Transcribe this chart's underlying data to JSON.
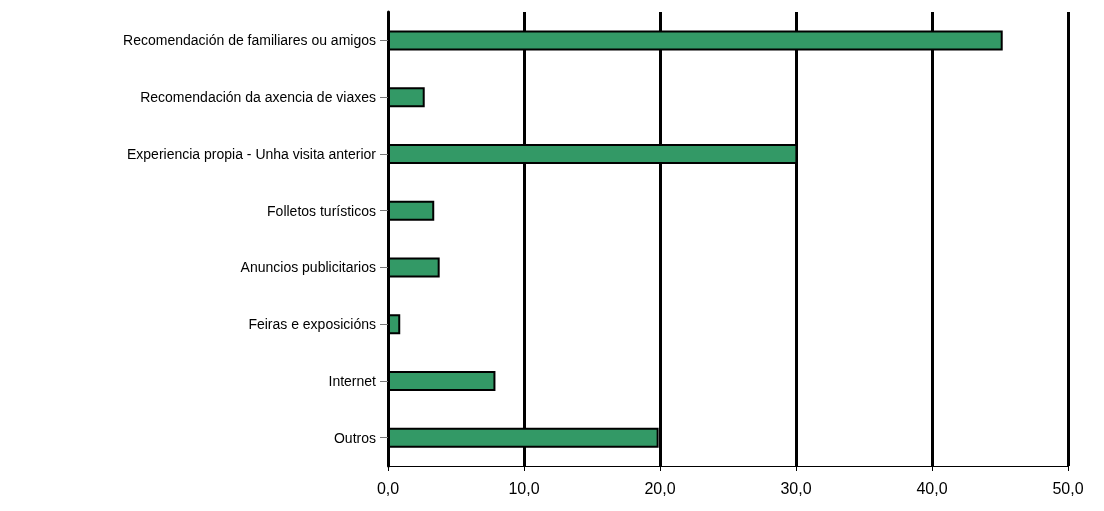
{
  "chart_data": {
    "type": "bar",
    "orientation": "horizontal",
    "categories": [
      "Recomendación de familiares ou amigos",
      "Recomendación da axencia de viaxes",
      "Experiencia propia - Unha visita anterior",
      "Folletos turísticos",
      "Anuncios publicitarios",
      "Feiras e exposicións",
      "Internet",
      "Outros"
    ],
    "values": [
      45.2,
      2.7,
      30.1,
      3.4,
      3.8,
      0.9,
      7.9,
      19.9
    ],
    "color": "#339966",
    "xlim": [
      0,
      50
    ],
    "xticks": [
      {
        "value": 0,
        "label": "0,0"
      },
      {
        "value": 10,
        "label": "10,0"
      },
      {
        "value": 20,
        "label": "20,0"
      },
      {
        "value": 30,
        "label": "30,0"
      },
      {
        "value": 40,
        "label": "40,0"
      },
      {
        "value": 50,
        "label": "50,0"
      }
    ],
    "grid": "x"
  }
}
